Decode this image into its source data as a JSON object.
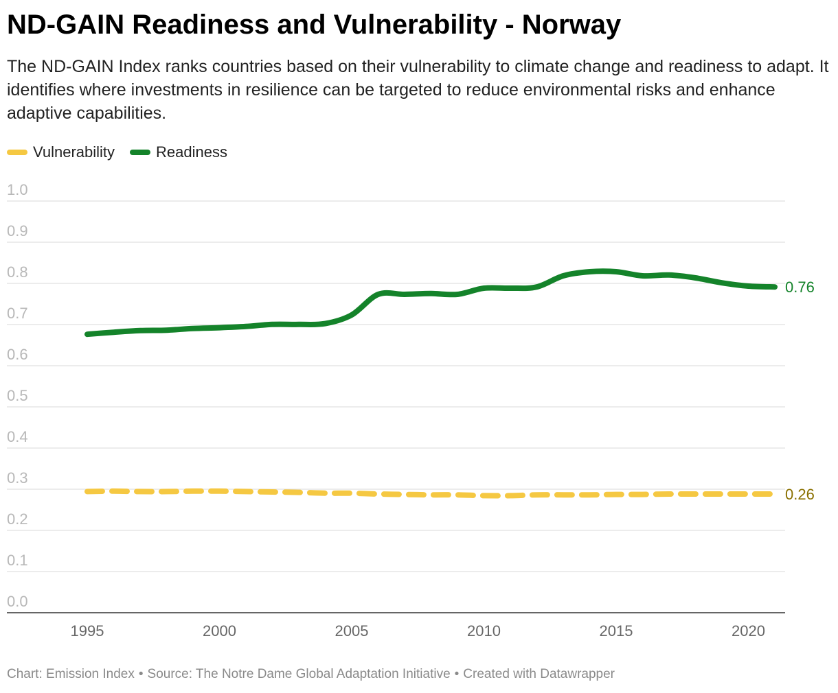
{
  "header": {
    "title": "ND-GAIN Readiness and Vulnerability - Norway",
    "subtitle": "The ND-GAIN Index ranks countries based on their vulnerability to climate change and readiness to adapt. It identifies where investments in resilience can be targeted to reduce environmental risks and enhance adaptive capabilities."
  },
  "legend": [
    {
      "label": "Vulnerability",
      "color": "#f5c842"
    },
    {
      "label": "Readiness",
      "color": "#14832a"
    }
  ],
  "chart_data": {
    "type": "line",
    "title": "ND-GAIN Readiness and Vulnerability - Norway",
    "xlabel": "",
    "ylabel": "",
    "x": [
      1995,
      1996,
      1997,
      1998,
      1999,
      2000,
      2001,
      2002,
      2003,
      2004,
      2005,
      2006,
      2007,
      2008,
      2009,
      2010,
      2011,
      2012,
      2013,
      2014,
      2015,
      2016,
      2017,
      2018,
      2019,
      2020,
      2021
    ],
    "xlim": [
      1995,
      2021
    ],
    "ylim": [
      0,
      1
    ],
    "x_ticks": [
      "1995",
      "2000",
      "2005",
      "2010",
      "2015",
      "2020"
    ],
    "y_ticks": [
      "0.0",
      "0.1",
      "0.2",
      "0.3",
      "0.4",
      "0.5",
      "0.6",
      "0.7",
      "0.8",
      "0.9",
      "1.0"
    ],
    "grid": true,
    "legend_position": "top-left",
    "series": [
      {
        "name": "Vulnerability",
        "color": "#f5c842",
        "style": "dashed",
        "end_label": "0.26",
        "end_label_color": "#8a7000",
        "values": [
          0.266,
          0.267,
          0.266,
          0.266,
          0.267,
          0.267,
          0.266,
          0.265,
          0.264,
          0.262,
          0.262,
          0.26,
          0.259,
          0.258,
          0.258,
          0.256,
          0.256,
          0.258,
          0.258,
          0.258,
          0.259,
          0.259,
          0.26,
          0.26,
          0.26,
          0.26,
          0.26
        ]
      },
      {
        "name": "Readiness",
        "color": "#14832a",
        "style": "solid",
        "end_label": "0.76",
        "end_label_color": "#14832a",
        "values": [
          0.648,
          0.653,
          0.657,
          0.658,
          0.662,
          0.664,
          0.667,
          0.672,
          0.672,
          0.674,
          0.695,
          0.745,
          0.745,
          0.747,
          0.745,
          0.76,
          0.76,
          0.763,
          0.79,
          0.8,
          0.8,
          0.79,
          0.792,
          0.785,
          0.773,
          0.765,
          0.763
        ]
      }
    ]
  },
  "footer": {
    "chart_credit": "Chart: Emission Index",
    "source": "Source: The Notre Dame Global Adaptation Initiative",
    "created_with": "Created with Datawrapper",
    "separator": "•"
  }
}
